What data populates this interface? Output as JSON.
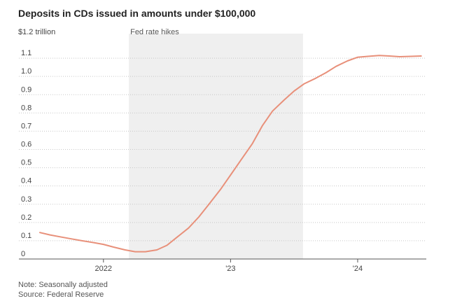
{
  "chart_data": {
    "type": "line",
    "title": "Deposits in CDs issued in amounts under $100,000",
    "ylabel": "$1.2 trillion",
    "ylim": [
      0,
      1.2
    ],
    "yticks": [
      "0",
      "0.1",
      "0.2",
      "0.3",
      "0.4",
      "0.5",
      "0.6",
      "0.7",
      "0.8",
      "0.9",
      "1.0",
      "1.1"
    ],
    "xlim": [
      2021.5,
      2024.54
    ],
    "xticks": [
      {
        "label": "2022",
        "x": 2022.0
      },
      {
        "label": "'23",
        "x": 2023.0
      },
      {
        "label": "'24",
        "x": 2024.0
      }
    ],
    "shaded_region": {
      "label": "Fed rate hikes",
      "x0": 2022.2,
      "x1": 2023.57,
      "color": "#efefef"
    },
    "series": [
      {
        "color": "#e8907a",
        "x": [
          2021.5,
          2021.58,
          2021.67,
          2021.75,
          2021.83,
          2021.92,
          2022.0,
          2022.08,
          2022.17,
          2022.25,
          2022.33,
          2022.42,
          2022.5,
          2022.58,
          2022.67,
          2022.75,
          2022.83,
          2022.92,
          2023.0,
          2023.08,
          2023.17,
          2023.25,
          2023.33,
          2023.42,
          2023.5,
          2023.58,
          2023.67,
          2023.75,
          2023.83,
          2023.92,
          2024.0,
          2024.08,
          2024.17,
          2024.25,
          2024.33,
          2024.42,
          2024.5
        ],
        "values": [
          0.145,
          0.132,
          0.12,
          0.11,
          0.1,
          0.09,
          0.08,
          0.065,
          0.05,
          0.04,
          0.04,
          0.05,
          0.075,
          0.12,
          0.17,
          0.23,
          0.3,
          0.38,
          0.46,
          0.54,
          0.63,
          0.73,
          0.81,
          0.87,
          0.92,
          0.96,
          0.99,
          1.02,
          1.055,
          1.085,
          1.105,
          1.11,
          1.115,
          1.112,
          1.108,
          1.11,
          1.112
        ]
      }
    ]
  },
  "notes": {
    "line1": "Note: Seasonally adjusted",
    "line2": "Source: Federal Reserve"
  }
}
